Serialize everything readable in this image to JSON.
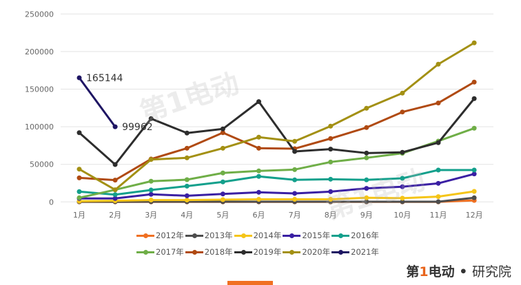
{
  "chart_data": {
    "type": "line",
    "title": "",
    "xlabel": "",
    "ylabel": "",
    "categories": [
      "1月",
      "2月",
      "3月",
      "4月",
      "5月",
      "6月",
      "7月",
      "8月",
      "9月",
      "10月",
      "11月",
      "12月"
    ],
    "ylim": [
      0,
      250000
    ],
    "yticks": [
      "0",
      "50000",
      "100000",
      "150000",
      "200000",
      "250000"
    ],
    "grid": true,
    "legend_position": "bottom",
    "series": [
      {
        "name": "2012年",
        "color": "#f07022",
        "values": [
          0,
          0,
          0,
          0,
          0,
          0,
          0,
          0,
          0,
          0,
          0,
          2000
        ]
      },
      {
        "name": "2013年",
        "color": "#4d4d4d",
        "values": [
          200,
          200,
          300,
          300,
          300,
          300,
          300,
          300,
          300,
          300,
          300,
          5500
        ]
      },
      {
        "name": "2014年",
        "color": "#f5c518",
        "values": [
          1000,
          1500,
          2500,
          2500,
          3000,
          3500,
          3500,
          3500,
          5500,
          5000,
          7000,
          14000
        ]
      },
      {
        "name": "2015年",
        "color": "#3a1fa3",
        "values": [
          4600,
          4600,
          10100,
          8200,
          10600,
          12800,
          11300,
          13700,
          18000,
          20200,
          24700,
          37200
        ]
      },
      {
        "name": "2016年",
        "color": "#13a08c",
        "values": [
          13700,
          9700,
          15800,
          21000,
          26600,
          33900,
          29300,
          30200,
          29300,
          31400,
          42400,
          42400
        ]
      },
      {
        "name": "2017年",
        "color": "#6fae47",
        "values": [
          5500,
          16100,
          27500,
          29600,
          38500,
          41200,
          43000,
          53100,
          58600,
          64700,
          80900,
          98000
        ]
      },
      {
        "name": "2018年",
        "color": "#b04a12",
        "values": [
          32000,
          29000,
          57000,
          71400,
          92100,
          71400,
          70800,
          84300,
          98900,
          119600,
          131600,
          159400
        ]
      },
      {
        "name": "2019年",
        "color": "#2d2d2d",
        "values": [
          92100,
          49700,
          110800,
          91600,
          97100,
          133400,
          67100,
          70200,
          65000,
          66000,
          78800,
          137400
        ]
      },
      {
        "name": "2020年",
        "color": "#a39013",
        "values": [
          43600,
          16100,
          56400,
          58600,
          71400,
          86100,
          80600,
          100800,
          124600,
          144700,
          183200,
          211600
        ]
      },
      {
        "name": "2021年",
        "color": "#1e1563",
        "values": [
          165144,
          99962,
          null,
          null,
          null,
          null,
          null,
          null,
          null,
          null,
          null,
          null
        ],
        "data_labels": [
          "165144",
          "99962"
        ]
      }
    ]
  },
  "logo": {
    "brand_prefix": "第",
    "brand_one": "1",
    "brand_suffix": "电动",
    "separator": "•",
    "subtitle": "研究院"
  }
}
